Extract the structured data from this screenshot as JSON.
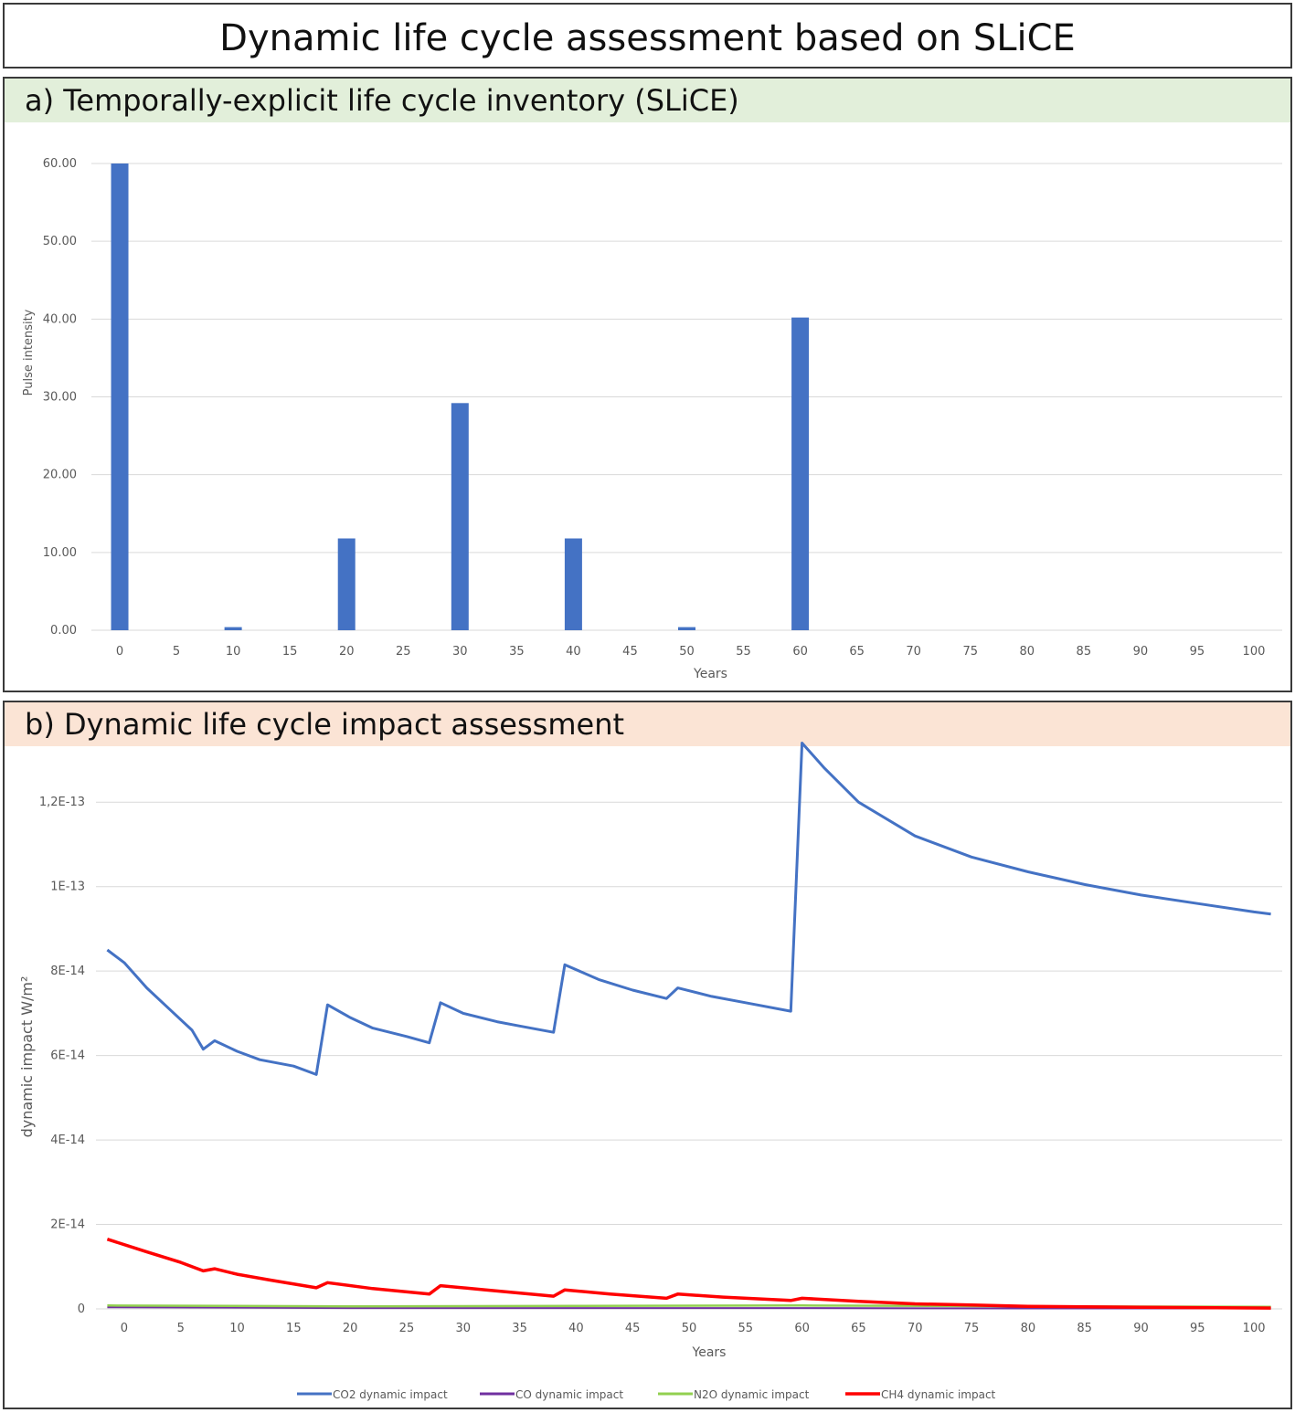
{
  "title": "Dynamic life cycle assessment based on SLiCE",
  "panels": {
    "a": {
      "header": "a) Temporally-explicit life cycle inventory (SLiCE)"
    },
    "b": {
      "header": "b) Dynamic life cycle impact assessment"
    }
  },
  "chart_data": [
    {
      "type": "bar",
      "xlabel": "Years",
      "ylabel": "Pulse intensity",
      "ylim": [
        0,
        60
      ],
      "yticks": [
        "0.00",
        "10.00",
        "20.00",
        "30.00",
        "40.00",
        "50.00",
        "60.00"
      ],
      "xticks": [
        "0",
        "5",
        "10",
        "15",
        "20",
        "25",
        "30",
        "35",
        "40",
        "45",
        "50",
        "55",
        "60",
        "65",
        "70",
        "75",
        "80",
        "85",
        "90",
        "95",
        "100"
      ],
      "grid": true,
      "color": "#4472c4",
      "bars": [
        {
          "x": 0,
          "value": 60.0
        },
        {
          "x": 10,
          "value": 0.4
        },
        {
          "x": 20,
          "value": 11.8
        },
        {
          "x": 30,
          "value": 29.2
        },
        {
          "x": 40,
          "value": 11.8
        },
        {
          "x": 50,
          "value": 0.4
        },
        {
          "x": 60,
          "value": 40.2
        }
      ]
    },
    {
      "type": "line",
      "xlabel": "Years",
      "ylabel": "dynamic impact  W/m²",
      "ylim": [
        0,
        1.3e-13
      ],
      "yticks": [
        {
          "value": 0,
          "label": "0"
        },
        {
          "value": 2e-14,
          "label": "2E-14"
        },
        {
          "value": 4e-14,
          "label": "4E-14"
        },
        {
          "value": 6e-14,
          "label": "6E-14"
        },
        {
          "value": 8e-14,
          "label": "8E-14"
        },
        {
          "value": 1e-13,
          "label": "1E-13"
        },
        {
          "value": 1.2e-13,
          "label": "1,2E-13"
        }
      ],
      "xticks": [
        "0",
        "5",
        "10",
        "15",
        "20",
        "25",
        "30",
        "35",
        "40",
        "45",
        "50",
        "55",
        "60",
        "65",
        "70",
        "75",
        "80",
        "85",
        "90",
        "95",
        "100"
      ],
      "grid": true,
      "legend_position": "bottom",
      "series": [
        {
          "name": "CO2 dynamic impact",
          "color": "#4472c4",
          "points": [
            [
              -1.5,
              8.5e-14
            ],
            [
              0,
              8.2e-14
            ],
            [
              2,
              7.6e-14
            ],
            [
              4,
              7.1e-14
            ],
            [
              6,
              6.6e-14
            ],
            [
              7,
              6.15e-14
            ],
            [
              8,
              6.35e-14
            ],
            [
              10,
              6.1e-14
            ],
            [
              12,
              5.9e-14
            ],
            [
              15,
              5.75e-14
            ],
            [
              17,
              5.55e-14
            ],
            [
              18,
              7.2e-14
            ],
            [
              20,
              6.9e-14
            ],
            [
              22,
              6.65e-14
            ],
            [
              25,
              6.45e-14
            ],
            [
              27,
              6.3e-14
            ],
            [
              28,
              7.25e-14
            ],
            [
              30,
              7e-14
            ],
            [
              33,
              6.8e-14
            ],
            [
              35,
              6.7e-14
            ],
            [
              38,
              6.55e-14
            ],
            [
              39,
              8.15e-14
            ],
            [
              42,
              7.8e-14
            ],
            [
              45,
              7.55e-14
            ],
            [
              48,
              7.35e-14
            ],
            [
              49,
              7.6e-14
            ],
            [
              52,
              7.4e-14
            ],
            [
              55,
              7.25e-14
            ],
            [
              59,
              7.05e-14
            ],
            [
              60,
              1.34e-13
            ],
            [
              62,
              1.28e-13
            ],
            [
              65,
              1.2e-13
            ],
            [
              70,
              1.12e-13
            ],
            [
              75,
              1.07e-13
            ],
            [
              80,
              1.035e-13
            ],
            [
              85,
              1.005e-13
            ],
            [
              90,
              9.8e-14
            ],
            [
              95,
              9.6e-14
            ],
            [
              100,
              9.4e-14
            ],
            [
              101.5,
              9.35e-14
            ]
          ]
        },
        {
          "name": "CO dynamic impact",
          "color": "#7030a0",
          "points": [
            [
              -1.5,
              4e-16
            ],
            [
              20,
              2e-16
            ],
            [
              40,
              2e-16
            ],
            [
              60,
              2e-16
            ],
            [
              80,
              1e-16
            ],
            [
              101.5,
              1e-16
            ]
          ]
        },
        {
          "name": "N2O dynamic impact",
          "color": "#92d050",
          "points": [
            [
              -1.5,
              8e-16
            ],
            [
              20,
              6e-16
            ],
            [
              40,
              7e-16
            ],
            [
              60,
              8e-16
            ],
            [
              80,
              6e-16
            ],
            [
              101.5,
              5e-16
            ]
          ]
        },
        {
          "name": "CH4 dynamic impact",
          "color": "#ff0000",
          "points": [
            [
              -1.5,
              1.65e-14
            ],
            [
              2,
              1.35e-14
            ],
            [
              5,
              1.1e-14
            ],
            [
              7,
              9e-15
            ],
            [
              8,
              9.5e-15
            ],
            [
              10,
              8.2e-15
            ],
            [
              13,
              6.8e-15
            ],
            [
              17,
              5e-15
            ],
            [
              18,
              6.2e-15
            ],
            [
              22,
              4.8e-15
            ],
            [
              27,
              3.5e-15
            ],
            [
              28,
              5.5e-15
            ],
            [
              32,
              4.5e-15
            ],
            [
              38,
              3e-15
            ],
            [
              39,
              4.5e-15
            ],
            [
              43,
              3.5e-15
            ],
            [
              48,
              2.5e-15
            ],
            [
              49,
              3.5e-15
            ],
            [
              53,
              2.8e-15
            ],
            [
              59,
              2e-15
            ],
            [
              60,
              2.5e-15
            ],
            [
              65,
              1.8e-15
            ],
            [
              70,
              1.2e-15
            ],
            [
              75,
              9e-16
            ],
            [
              80,
              6e-16
            ],
            [
              90,
              4e-16
            ],
            [
              101.5,
              2e-16
            ]
          ]
        }
      ]
    }
  ]
}
